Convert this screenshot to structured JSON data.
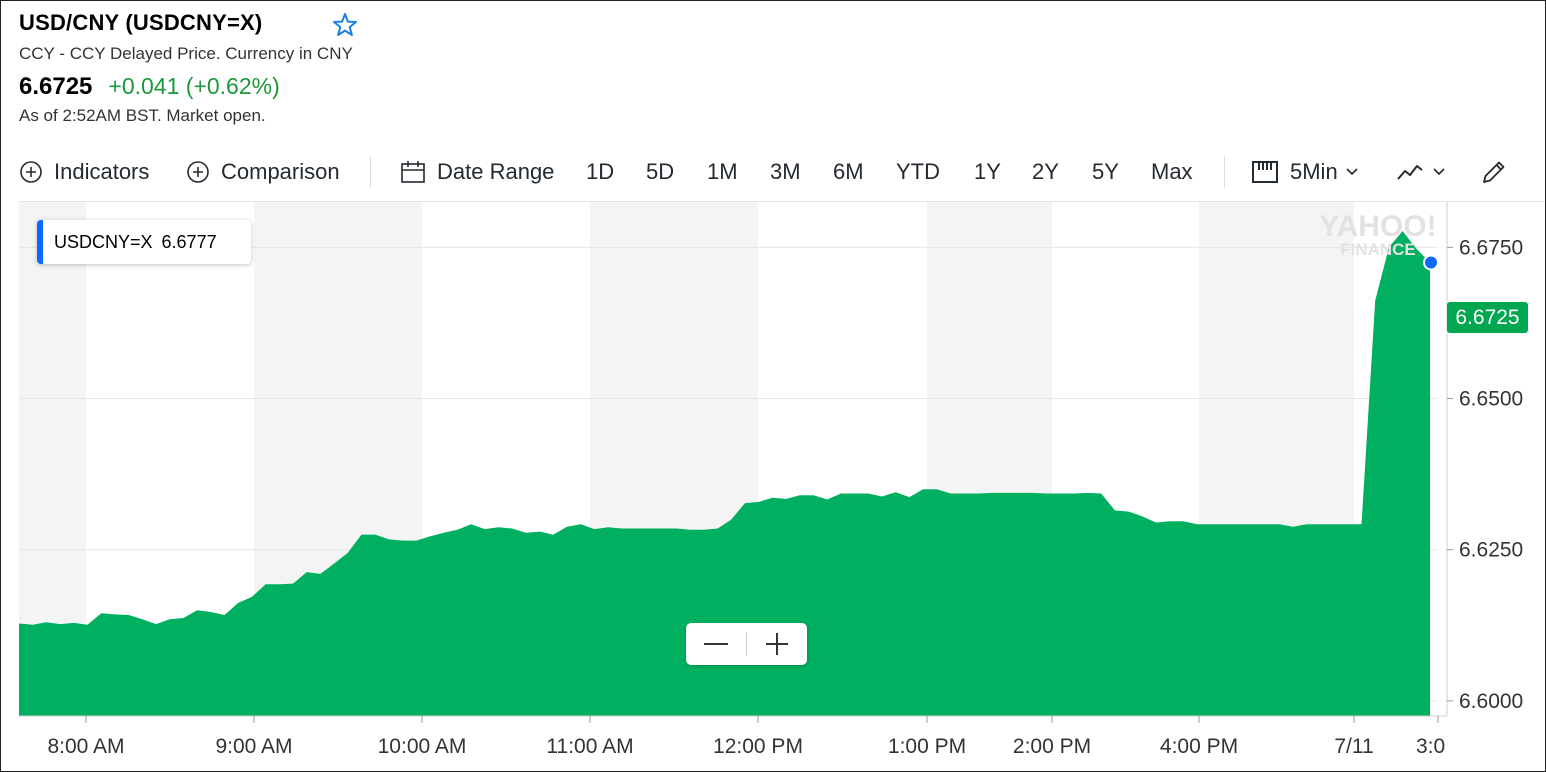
{
  "header": {
    "title": "USD/CNY (USDCNY=X)",
    "subtitle": "CCY - CCY Delayed Price. Currency in CNY",
    "price": "6.6725",
    "change": "+0.041 (+0.62%)",
    "as_of": "As of 2:52AM BST. Market open.",
    "change_color": "#1a9a3c"
  },
  "toolbar": {
    "indicators": "Indicators",
    "comparison": "Comparison",
    "date_range": "Date Range",
    "ranges": [
      "1D",
      "5D",
      "1M",
      "3M",
      "6M",
      "YTD",
      "1Y",
      "2Y",
      "5Y",
      "Max"
    ],
    "interval": "5Min"
  },
  "tooltip": {
    "symbol": "USDCNY=X",
    "value": "6.6777"
  },
  "watermark": {
    "line1": "YAHOO!",
    "line2": "FINANCE"
  },
  "price_label": "6.6725",
  "chart_data": {
    "type": "area",
    "color": "#00b060",
    "x_ticks": [
      "8:00 AM",
      "9:00 AM",
      "10:00 AM",
      "11:00 AM",
      "12:00 PM",
      "1:00 PM",
      "2:00 PM",
      "4:00 PM",
      "7/11",
      "3:0"
    ],
    "y_ticks": [
      "6.6000",
      "6.6250",
      "6.6500",
      "6.6750"
    ],
    "ylim": [
      6.5975,
      6.6825
    ],
    "grid": true,
    "series": [
      {
        "values": [
          6.6128,
          6.6126,
          6.613,
          6.6127,
          6.6129,
          6.6126,
          6.6145,
          6.6143,
          6.6142,
          6.6135,
          6.6127,
          6.6135,
          6.6137,
          6.615,
          6.6147,
          6.6142,
          6.6162,
          6.6172,
          6.6193,
          6.6193,
          6.6194,
          6.6213,
          6.621,
          6.6227,
          6.6245,
          6.6275,
          6.6275,
          6.6267,
          6.6265,
          6.6265,
          6.6272,
          6.6278,
          6.6283,
          6.6292,
          6.6284,
          6.6287,
          6.6285,
          6.6278,
          6.628,
          6.6275,
          6.6288,
          6.6292,
          6.6284,
          6.6287,
          6.6285,
          6.6285,
          6.6285,
          6.6285,
          6.6285,
          6.6283,
          6.6283,
          6.6285,
          6.63,
          6.6327,
          6.6329,
          6.6336,
          6.6334,
          6.634,
          6.634,
          6.6333,
          6.6343,
          6.6343,
          6.6343,
          6.6338,
          6.6345,
          6.6337,
          6.635,
          6.635,
          6.6343,
          6.6343,
          6.6343,
          6.6344,
          6.6344,
          6.6344,
          6.6344,
          6.6343,
          6.6343,
          6.6343,
          6.6344,
          6.6343,
          6.6315,
          6.6313,
          6.6305,
          6.6295,
          6.6297,
          6.6297,
          6.6292,
          6.6292,
          6.6292,
          6.6292,
          6.6292,
          6.6292,
          6.6292,
          6.6288,
          6.6292,
          6.6292,
          6.6292,
          6.6292,
          6.6292,
          6.6662,
          6.675,
          6.6777,
          6.6748,
          6.6725
        ]
      }
    ],
    "last_value": 6.6725
  }
}
